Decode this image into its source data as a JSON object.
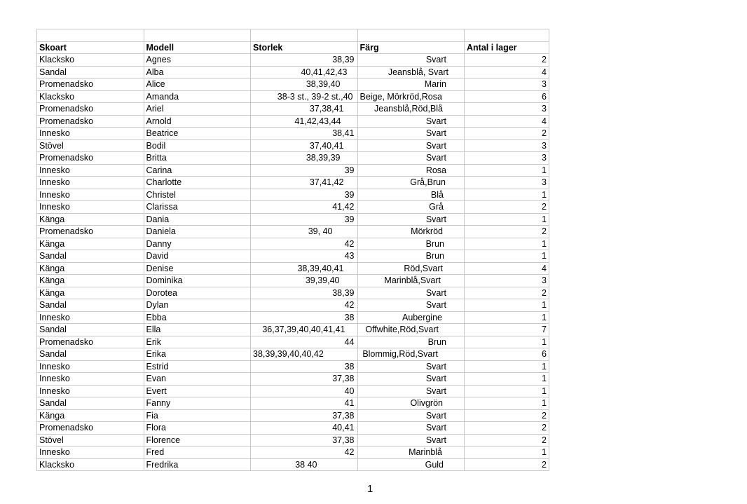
{
  "table": {
    "headers": [
      "Skoart",
      "Modell",
      "Storlek",
      "Färg",
      "Antal i lager"
    ],
    "rows": [
      [
        "Klacksko",
        "Agnes",
        "38,39",
        "Svart",
        "2"
      ],
      [
        "Sandal",
        "Alba",
        "40,41,42,43",
        "Jeansblå, Svart",
        "4"
      ],
      [
        "Promenadsko",
        "Alice",
        "38,39,40",
        "Marin",
        "3"
      ],
      [
        "Klacksko",
        "Amanda",
        "38-3 st., 39-2 st.,40",
        "Beige, Mörkröd,Rosa",
        "6"
      ],
      [
        "Promenadsko",
        "Ariel",
        "37,38,41",
        "Jeansblå,Röd,Blå",
        "3"
      ],
      [
        "Promenadsko",
        "Arnold",
        "41,42,43,44",
        "Svart",
        "4"
      ],
      [
        "Innesko",
        "Beatrice",
        "38,41",
        "Svart",
        "2"
      ],
      [
        "Stövel",
        "Bodil",
        "37,40,41",
        "Svart",
        "3"
      ],
      [
        "Promenadsko",
        "Britta",
        "38,39,39",
        "Svart",
        "3"
      ],
      [
        "Innesko",
        "Carina",
        "39",
        "Rosa",
        "1"
      ],
      [
        "Innesko",
        "Charlotte",
        "37,41,42",
        "Grå,Brun",
        "3"
      ],
      [
        "Innesko",
        "Christel",
        "39",
        "Blå",
        "1"
      ],
      [
        "Innesko",
        "Clarissa",
        "41,42",
        "Grå",
        "2"
      ],
      [
        "Känga",
        "Dania",
        "39",
        "Svart",
        "1"
      ],
      [
        "Promenadsko",
        "Daniela",
        "39, 40",
        "Mörkröd",
        "2"
      ],
      [
        "Känga",
        "Danny",
        "42",
        "Brun",
        "1"
      ],
      [
        "Sandal",
        "David",
        "43",
        "Brun",
        "1"
      ],
      [
        "Känga",
        "Denise",
        "38,39,40,41",
        "Röd,Svart",
        "4"
      ],
      [
        "Känga",
        "Dominika",
        "39,39,40",
        "Marinblå,Svart",
        "3"
      ],
      [
        "Känga",
        "Dorotea",
        "38,39",
        "Svart",
        "2"
      ],
      [
        "Sandal",
        "Dylan",
        "42",
        "Svart",
        "1"
      ],
      [
        "Innesko",
        "Ebba",
        "38",
        "Aubergine",
        "1"
      ],
      [
        "Sandal",
        "Ella",
        "36,37,39,40,40,41,41",
        "Offwhite,Röd,Svart",
        "7"
      ],
      [
        "Promenadsko",
        "Erik",
        "44",
        "Brun",
        "1"
      ],
      [
        "Sandal",
        "Erika",
        "38,39,39,40,40,42",
        "Blommig,Röd,Svart",
        "6"
      ],
      [
        "Innesko",
        "Estrid",
        "38",
        "Svart",
        "1"
      ],
      [
        "Innesko",
        "Evan",
        "37,38",
        "Svart",
        "1"
      ],
      [
        "Innesko",
        "Evert",
        "40",
        "Svart",
        "1"
      ],
      [
        "Sandal",
        "Fanny",
        "41",
        "Olivgrön",
        "1"
      ],
      [
        "Känga",
        "Fia",
        "37,38",
        "Svart",
        "2"
      ],
      [
        "Promenadsko",
        "Flora",
        "40,41",
        "Svart",
        "2"
      ],
      [
        "Stövel",
        "Florence",
        "37,38",
        "Svart",
        "2"
      ],
      [
        "Innesko",
        "Fred",
        "42",
        "Marinblå",
        "1"
      ],
      [
        "Klacksko",
        "Fredrika",
        "38 40",
        "Guld",
        "2"
      ]
    ]
  },
  "page_number": "1"
}
